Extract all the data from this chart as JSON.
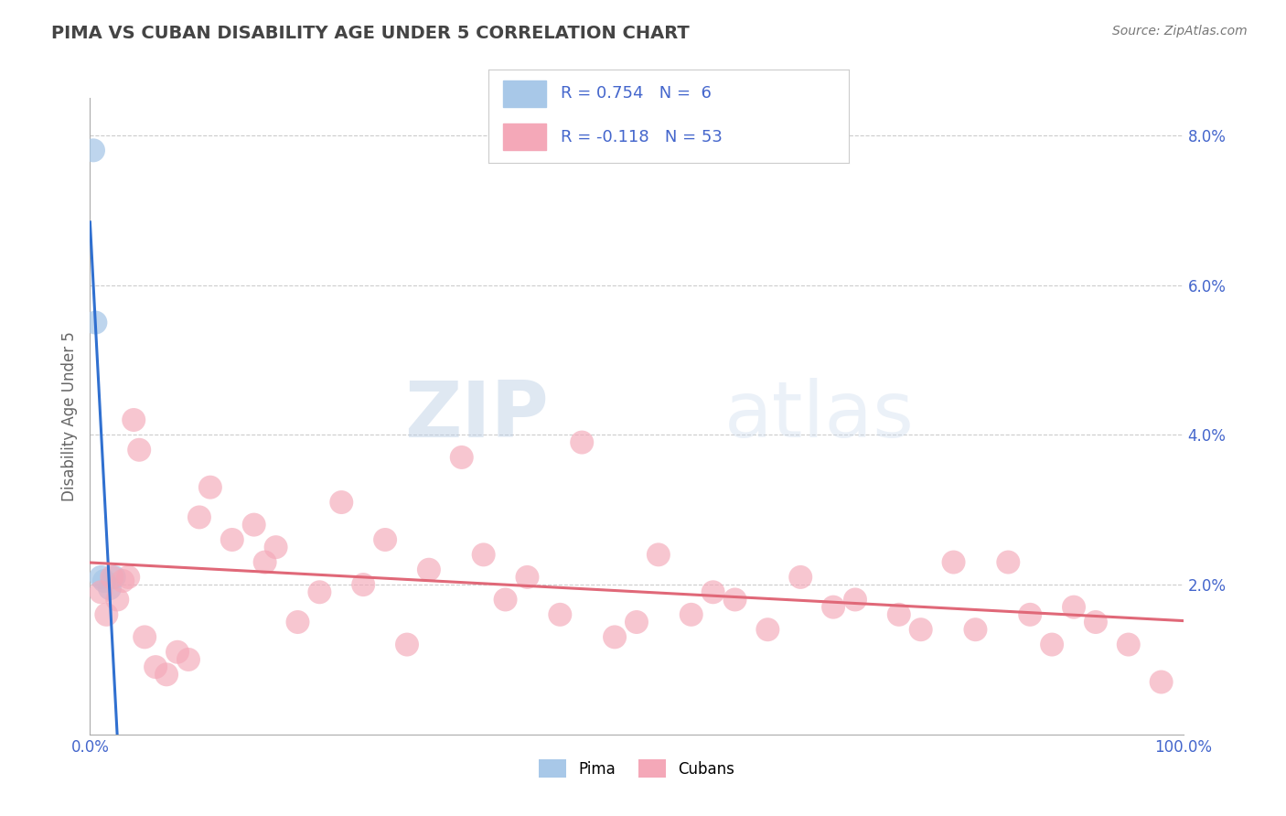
{
  "title": "PIMA VS CUBAN DISABILITY AGE UNDER 5 CORRELATION CHART",
  "source": "Source: ZipAtlas.com",
  "ylabel": "Disability Age Under 5",
  "xlim": [
    0,
    100
  ],
  "ylim": [
    0,
    8.5
  ],
  "pima_color": "#a8c8e8",
  "cuban_color": "#f4a8b8",
  "pima_line_color": "#3070d0",
  "cuban_line_color": "#e06878",
  "watermark_zip": "ZIP",
  "watermark_atlas": "atlas",
  "background_color": "#ffffff",
  "grid_color": "#cccccc",
  "pima_x": [
    0.3,
    0.5,
    1.0,
    1.3,
    1.8,
    2.2
  ],
  "pima_y": [
    7.8,
    5.5,
    2.1,
    2.05,
    1.95,
    2.1
  ],
  "cuban_x": [
    1.0,
    1.5,
    2.0,
    2.5,
    3.0,
    3.5,
    4.0,
    4.5,
    5.0,
    6.0,
    7.0,
    8.0,
    9.0,
    10.0,
    11.0,
    13.0,
    15.0,
    16.0,
    17.0,
    19.0,
    21.0,
    23.0,
    25.0,
    27.0,
    29.0,
    31.0,
    34.0,
    36.0,
    38.0,
    40.0,
    43.0,
    45.0,
    48.0,
    50.0,
    52.0,
    55.0,
    57.0,
    59.0,
    62.0,
    65.0,
    68.0,
    70.0,
    74.0,
    76.0,
    79.0,
    81.0,
    84.0,
    86.0,
    88.0,
    90.0,
    92.0,
    95.0,
    98.0
  ],
  "cuban_y": [
    1.9,
    1.6,
    2.1,
    1.8,
    2.05,
    2.1,
    4.2,
    3.8,
    1.3,
    0.9,
    0.8,
    1.1,
    1.0,
    2.9,
    3.3,
    2.6,
    2.8,
    2.3,
    2.5,
    1.5,
    1.9,
    3.1,
    2.0,
    2.6,
    1.2,
    2.2,
    3.7,
    2.4,
    1.8,
    2.1,
    1.6,
    3.9,
    1.3,
    1.5,
    2.4,
    1.6,
    1.9,
    1.8,
    1.4,
    2.1,
    1.7,
    1.8,
    1.6,
    1.4,
    2.3,
    1.4,
    2.3,
    1.6,
    1.2,
    1.7,
    1.5,
    1.2,
    0.7
  ],
  "legend_text1": "R = 0.754   N =  6",
  "legend_text2": "R = -0.118   N = 53",
  "label_color": "#4466cc",
  "tick_color": "#4466cc"
}
